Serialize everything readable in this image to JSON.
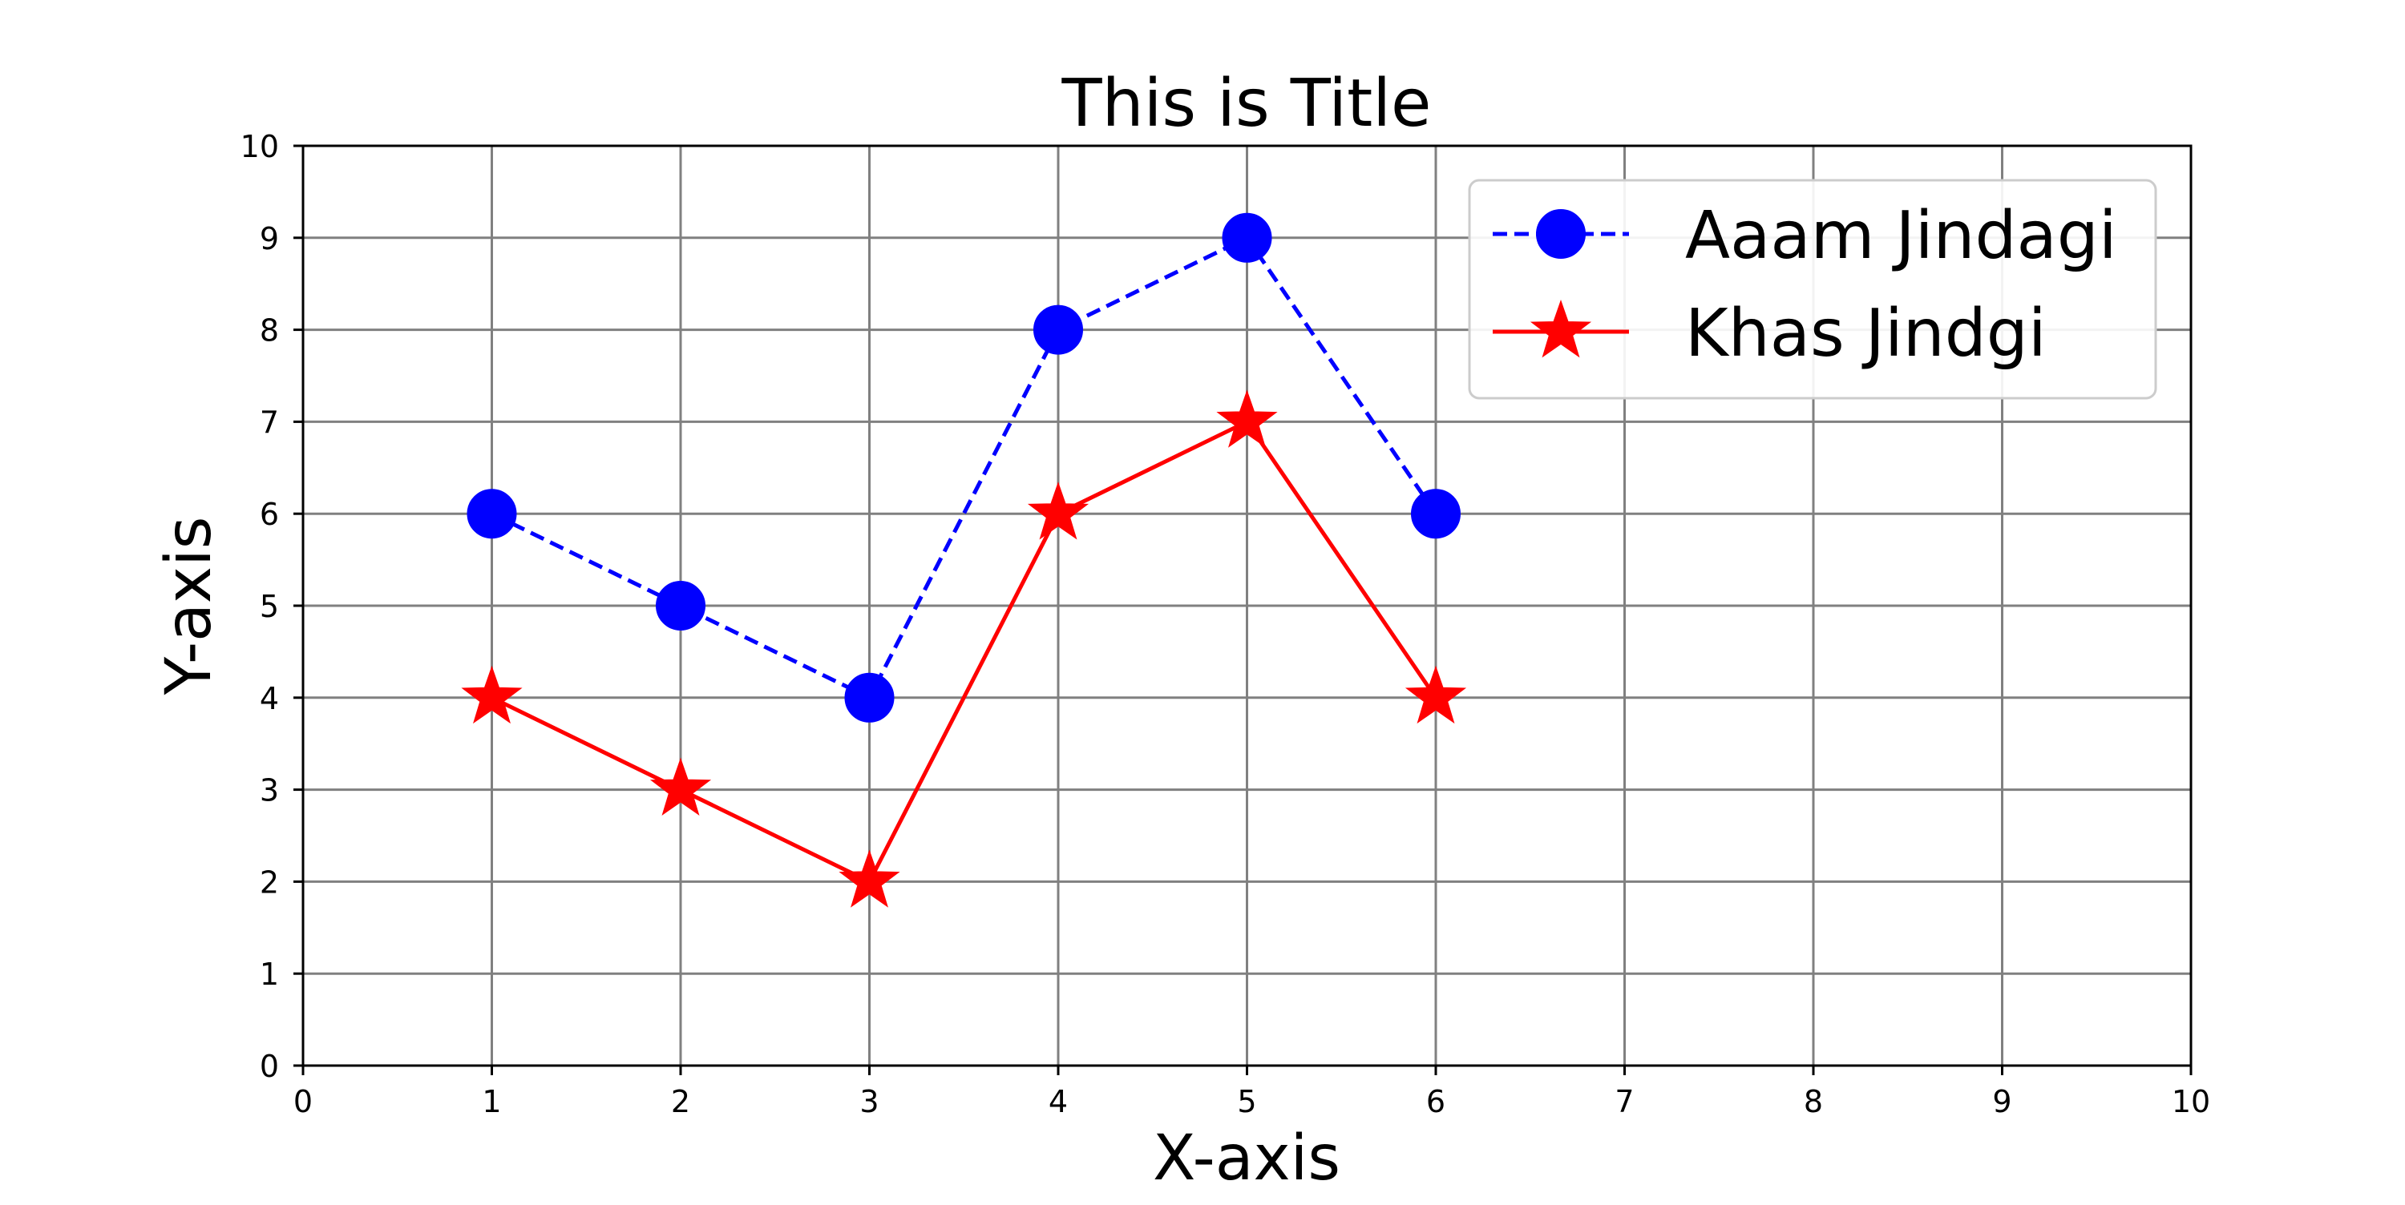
{
  "chart_data": {
    "type": "line",
    "title": "This is Title",
    "xlabel": "X-axis",
    "ylabel": "Y-axis",
    "xlim": [
      0,
      10
    ],
    "ylim": [
      0,
      10
    ],
    "xticks": [
      0,
      1,
      2,
      3,
      4,
      5,
      6,
      7,
      8,
      9,
      10
    ],
    "yticks": [
      0,
      1,
      2,
      3,
      4,
      5,
      6,
      7,
      8,
      9,
      10
    ],
    "grid": true,
    "grid_color": "#808080",
    "legend_position": "top-right",
    "x": [
      1,
      2,
      3,
      4,
      5,
      6
    ],
    "series": [
      {
        "name": "Aaam Jindagi",
        "values": [
          6,
          5,
          4,
          8,
          9,
          6
        ],
        "color": "#0000ff",
        "linestyle": "dashed",
        "marker": "circle"
      },
      {
        "name": "Khas Jindgi",
        "values": [
          4,
          3,
          2,
          6,
          7,
          4
        ],
        "color": "#ff0000",
        "linestyle": "solid",
        "marker": "star"
      }
    ]
  }
}
